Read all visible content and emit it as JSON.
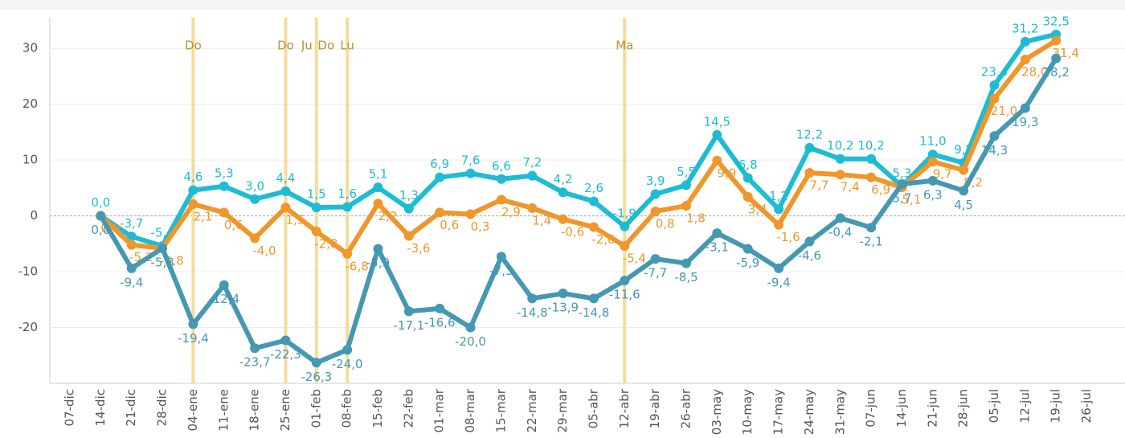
{
  "chart_data": {
    "type": "line",
    "categories": [
      "07-dic",
      "14-dic",
      "21-dic",
      "28-dic",
      "04-ene",
      "11-ene",
      "18-ene",
      "25-ene",
      "01-feb",
      "08-feb",
      "15-feb",
      "22-feb",
      "01-mar",
      "08-mar",
      "15-mar",
      "22-mar",
      "29-mar",
      "05-abr",
      "12-abr",
      "19-abr",
      "26-abr",
      "03-may",
      "10-may",
      "17-may",
      "24-may",
      "31-may",
      "07-jun",
      "14-jun",
      "21-jun",
      "28-jun",
      "05-jul",
      "12-jul",
      "19-jul",
      "26-jul"
    ],
    "series": [
      {
        "color": "#1ebcd3",
        "values": [
          null,
          0,
          -3.7,
          -5.4,
          4.6,
          5.3,
          3,
          4.4,
          1.5,
          1.6,
          5.1,
          1.3,
          6.9,
          7.6,
          6.6,
          7.2,
          4.2,
          2.6,
          -1.9,
          3.9,
          5.5,
          14.5,
          6.8,
          1.2,
          12.2,
          10.2,
          10.2,
          5.3,
          11,
          9.5,
          23.4,
          31.2,
          32.5,
          null
        ],
        "value_labels": [
          null,
          "0,0",
          "-3,7",
          "-5,4",
          "4,6",
          "5,3",
          "3,0",
          "4,4",
          "1,5",
          "1,6",
          "5,1",
          "1,3",
          "6,9",
          "7,6",
          "6,6",
          "7,2",
          "4,2",
          "2,6",
          "-1,9",
          "3,9",
          "5,5",
          "14,5",
          "6,8",
          "1,2",
          "12,2",
          "10,2",
          "10,2",
          "5,3",
          "11,0",
          "9,5",
          "23,4",
          "31,2",
          "32,5",
          null
        ]
      },
      {
        "color": "#f0962a",
        "values": [
          null,
          0,
          -5.2,
          -5.8,
          2.1,
          0.6,
          -4,
          1.5,
          -2.8,
          -6.8,
          2.2,
          -3.6,
          0.6,
          0.3,
          2.9,
          1.4,
          -0.6,
          -2,
          -5.4,
          0.8,
          1.8,
          9.9,
          3.4,
          -1.6,
          7.7,
          7.4,
          6.9,
          5.1,
          9.7,
          8.2,
          21,
          28,
          31.4,
          null
        ],
        "value_labels": [
          null,
          "0,0",
          "-5,2",
          "-5,8",
          "2,1",
          "0,6",
          "-4,0",
          "1,5",
          "-2,8",
          "-6,8",
          "2,2",
          "-3,6",
          "0,6",
          "0,3",
          "2,9",
          "1,4",
          "-0,6",
          "-2,0",
          "-5,4",
          "0,8",
          "1,8",
          "9,9",
          "3,4",
          "-1,6",
          "7,7",
          "7,4",
          "6,9",
          "5,1",
          "9,7",
          "8,2",
          "21,0",
          "28,0",
          "31,4",
          null
        ]
      },
      {
        "color": "#4598b2",
        "values": [
          null,
          0,
          -9.4,
          -5.8,
          -19.4,
          -12.4,
          -23.7,
          -22.3,
          -26.3,
          -24,
          -5.9,
          -17.1,
          -16.6,
          -20,
          -7.3,
          -14.8,
          -13.9,
          -14.8,
          -11.6,
          -7.7,
          -8.5,
          -3.1,
          -5.9,
          -9.4,
          -4.6,
          -0.4,
          -2.1,
          5.7,
          6.3,
          4.5,
          14.3,
          19.3,
          28.2,
          null
        ],
        "value_labels": [
          null,
          "0,0",
          "-9,4",
          "-5,8",
          "-19,4",
          "-12,4",
          "-23,7",
          "-22,3",
          "-26,3",
          "-24,0",
          "-5,9",
          "-17,1",
          "-16,6",
          "-20,0",
          "-7,3",
          "-14,8",
          "-13,9",
          "-14,8",
          "-11,6",
          "-7,7",
          "-8,5",
          "-3,1",
          "-5,9",
          "-9,4",
          "-4,6",
          "-0,4",
          "-2,1",
          "5,7",
          "6,3",
          "4,5",
          "14,3",
          "19,3",
          "28,2",
          null
        ]
      }
    ],
    "annotations": [
      {
        "x": "04-ene",
        "label": "Do"
      },
      {
        "x": "25-ene",
        "label": "Do"
      },
      {
        "x": "01-feb",
        "label": "Ju"
      },
      {
        "x": "01-feb",
        "label": "Do"
      },
      {
        "x": "08-feb",
        "label": "Lu"
      },
      {
        "x": "12-abr",
        "label": "Ma"
      }
    ],
    "annotation_color": "#f5dc9a",
    "ylim": [
      -30,
      35.5
    ],
    "yticks": [
      -20,
      -10,
      0,
      10,
      20,
      30
    ],
    "grid": true
  }
}
